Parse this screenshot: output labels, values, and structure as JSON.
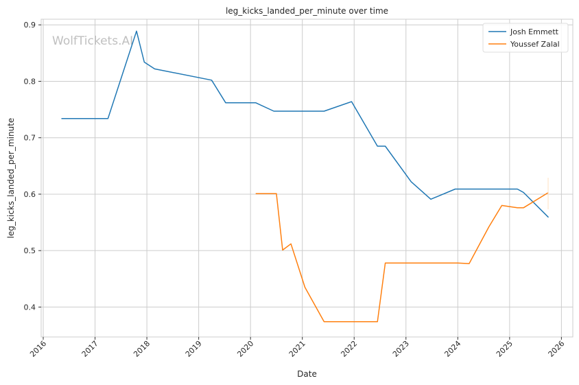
{
  "chart_data": {
    "type": "line",
    "title": "leg_kicks_landed_per_minute over time",
    "xlabel": "Date",
    "ylabel": "leg_kicks_landed_per_minute",
    "watermark": "WolfTickets.AI",
    "xlim": [
      2015.96,
      2026.22
    ],
    "ylim": [
      0.347,
      0.91
    ],
    "x_ticks": [
      2016,
      2017,
      2018,
      2019,
      2020,
      2021,
      2022,
      2023,
      2024,
      2025,
      2026
    ],
    "x_tick_labels": [
      "2016",
      "2017",
      "2018",
      "2019",
      "2020",
      "2021",
      "2022",
      "2023",
      "2024",
      "2025",
      "2026"
    ],
    "y_ticks": [
      0.4,
      0.5,
      0.6,
      0.7,
      0.8,
      0.9
    ],
    "y_tick_labels": [
      "0.4",
      "0.5",
      "0.6",
      "0.7",
      "0.8",
      "0.9"
    ],
    "grid": true,
    "legend_position": "top-right",
    "series": [
      {
        "name": "Josh Emmett",
        "color": "#1f77b4",
        "points": [
          [
            2016.35,
            0.734
          ],
          [
            2017.25,
            0.734
          ],
          [
            2017.8,
            0.889
          ],
          [
            2017.95,
            0.834
          ],
          [
            2018.15,
            0.822
          ],
          [
            2019.25,
            0.802
          ],
          [
            2019.52,
            0.762
          ],
          [
            2020.1,
            0.762
          ],
          [
            2020.45,
            0.747
          ],
          [
            2021.42,
            0.747
          ],
          [
            2021.95,
            0.764
          ],
          [
            2022.45,
            0.685
          ],
          [
            2022.6,
            0.685
          ],
          [
            2023.1,
            0.622
          ],
          [
            2023.48,
            0.591
          ],
          [
            2023.95,
            0.609
          ],
          [
            2024.3,
            0.609
          ],
          [
            2025.15,
            0.609
          ],
          [
            2025.27,
            0.603
          ],
          [
            2025.75,
            0.559
          ]
        ]
      },
      {
        "name": "Youssef Zalal",
        "color": "#ff7f0e",
        "points": [
          [
            2020.1,
            0.601
          ],
          [
            2020.5,
            0.601
          ],
          [
            2020.62,
            0.501
          ],
          [
            2020.78,
            0.512
          ],
          [
            2021.05,
            0.435
          ],
          [
            2021.42,
            0.374
          ],
          [
            2022.45,
            0.374
          ],
          [
            2022.6,
            0.478
          ],
          [
            2024.0,
            0.478
          ],
          [
            2024.22,
            0.477
          ],
          [
            2024.6,
            0.542
          ],
          [
            2024.85,
            0.58
          ],
          [
            2025.15,
            0.576
          ],
          [
            2025.27,
            0.576
          ],
          [
            2025.75,
            0.603
          ]
        ]
      }
    ]
  }
}
